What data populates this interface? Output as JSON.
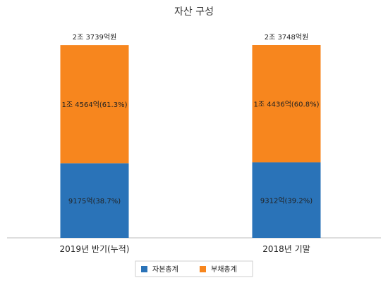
{
  "chart_data": {
    "type": "bar",
    "stacked": true,
    "title": "자산 구성",
    "categories": [
      "2019년 반기(누적)",
      "2018년 기말"
    ],
    "series": [
      {
        "name": "자본총계",
        "color": "#2a73b8",
        "values": [
          9175,
          9312
        ],
        "labels": [
          "9175억(38.7%)",
          "9312억(39.2%)"
        ]
      },
      {
        "name": "부채총계",
        "color": "#f7861e",
        "values": [
          14564,
          14436
        ],
        "labels": [
          "1조 4564억(61.3%)",
          "1조 4436억(60.8%)"
        ]
      }
    ],
    "totals": [
      23739,
      23748
    ],
    "total_labels": [
      "2조 3739억원",
      "2조 3748억원"
    ],
    "ylim": [
      0,
      23748
    ],
    "grid": false,
    "legend_position": "bottom"
  }
}
